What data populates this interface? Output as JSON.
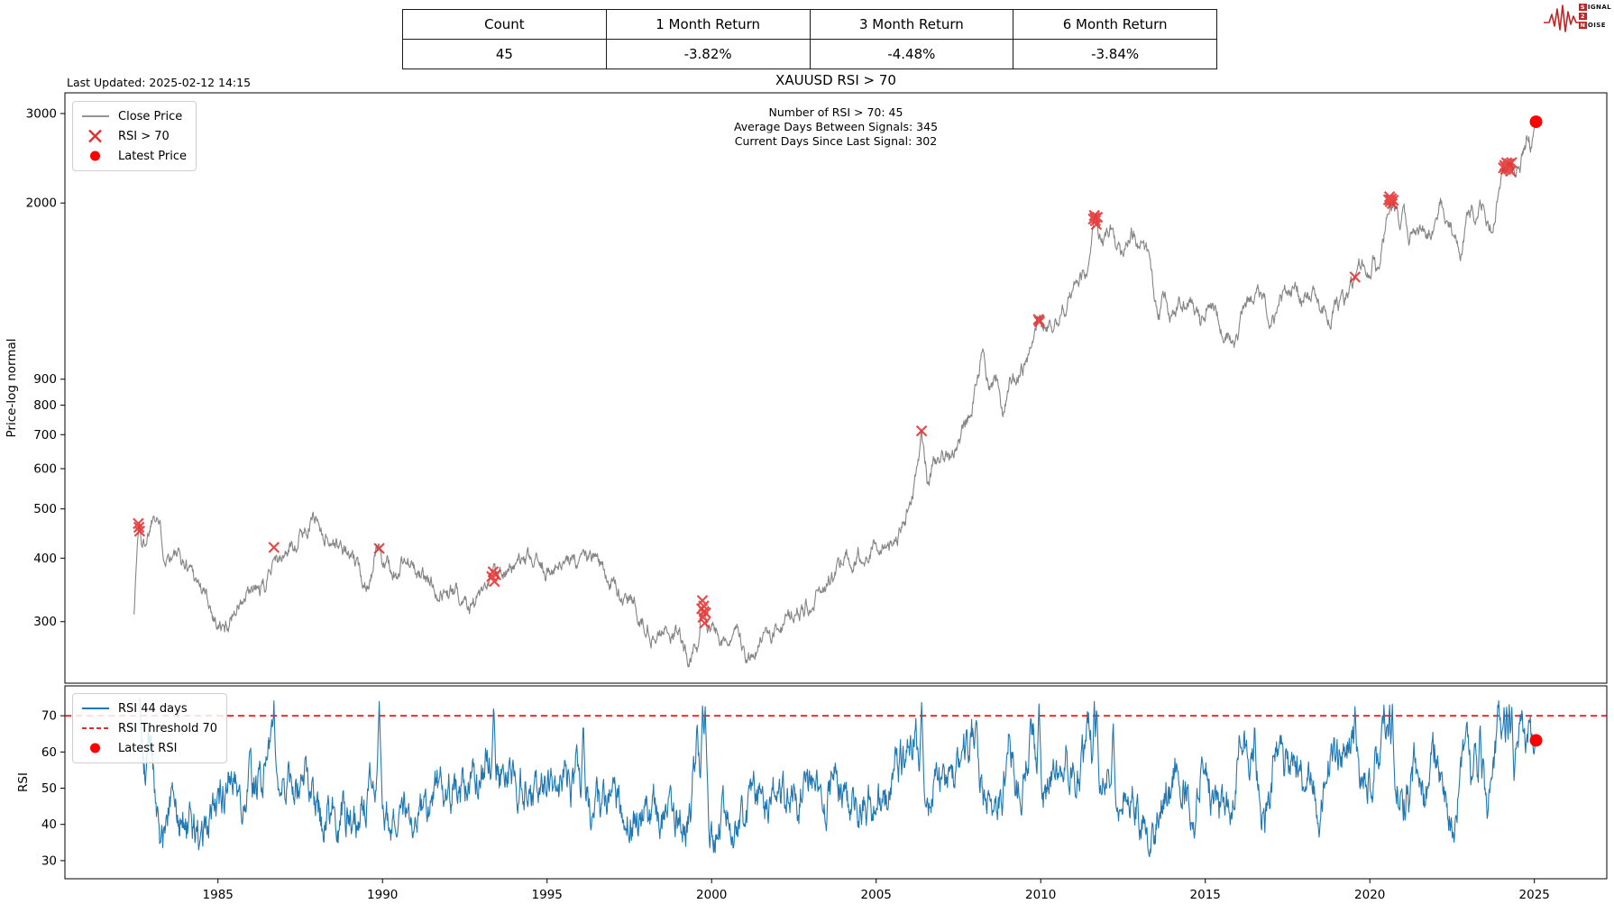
{
  "page": {
    "last_updated": "Last Updated: 2025-02-12 14:15",
    "title": "XAUUSD RSI > 70"
  },
  "summary_table": {
    "headers": [
      "Count",
      "1 Month Return",
      "3 Month Return",
      "6 Month Return"
    ],
    "values": [
      "45",
      "-3.82%",
      "-4.48%",
      "-3.84%"
    ]
  },
  "logo": {
    "rows": [
      {
        "boxed": "S",
        "rest": "IGNAL"
      },
      {
        "boxed": "2",
        "rest": ""
      },
      {
        "boxed": "N",
        "rest": "OISE"
      }
    ],
    "color": "#c52222"
  },
  "chart_data": [
    {
      "type": "line",
      "title": "XAUUSD RSI > 70",
      "ylabel": "Price-log normal",
      "yscale": "log",
      "ylim": [
        227,
        3295
      ],
      "xlim": [
        1980.35,
        2027.2
      ],
      "yticks": [
        3000,
        2000,
        900,
        800,
        700,
        600,
        500,
        400,
        300
      ],
      "grid": false,
      "annotations": [
        "Number of RSI > 70: 45",
        "Average Days Between Signals: 345",
        "Current Days Since Last Signal: 302"
      ],
      "stats": {
        "count": 45,
        "avg_days_between_signals": 345,
        "days_since_last_signal": 302
      },
      "legend": {
        "position": "upper left",
        "entries": [
          {
            "label": "Close Price",
            "marker": "line",
            "color": "#858585"
          },
          {
            "label": "RSI > 70",
            "marker": "x",
            "color": "#e63030"
          },
          {
            "label": "Latest Price",
            "marker": "dot",
            "color": "#ff0000"
          }
        ]
      },
      "series": [
        {
          "name": "Close Price",
          "color": "#858585",
          "seed": 1337,
          "keypoints": [
            [
              1982.45,
              315
            ],
            [
              1982.55,
              430
            ],
            [
              1982.62,
              470
            ],
            [
              1982.7,
              420
            ],
            [
              1982.85,
              445
            ],
            [
              1983.05,
              500
            ],
            [
              1983.15,
              510
            ],
            [
              1983.35,
              420
            ],
            [
              1983.6,
              415
            ],
            [
              1983.9,
              390
            ],
            [
              1984.2,
              385
            ],
            [
              1984.6,
              340
            ],
            [
              1985.0,
              300
            ],
            [
              1985.2,
              286
            ],
            [
              1985.55,
              325
            ],
            [
              1985.8,
              328
            ],
            [
              1986.1,
              340
            ],
            [
              1986.45,
              345
            ],
            [
              1986.7,
              420
            ],
            [
              1986.9,
              395
            ],
            [
              1987.2,
              420
            ],
            [
              1987.6,
              450
            ],
            [
              1987.95,
              490
            ],
            [
              1988.15,
              455
            ],
            [
              1988.5,
              435
            ],
            [
              1988.8,
              415
            ],
            [
              1989.1,
              390
            ],
            [
              1989.35,
              362
            ],
            [
              1989.6,
              370
            ],
            [
              1989.9,
              418
            ],
            [
              1990.1,
              390
            ],
            [
              1990.45,
              368
            ],
            [
              1990.65,
              400
            ],
            [
              1990.9,
              378
            ],
            [
              1991.3,
              360
            ],
            [
              1991.7,
              350
            ],
            [
              1992.1,
              340
            ],
            [
              1992.5,
              338
            ],
            [
              1992.9,
              332
            ],
            [
              1993.15,
              328
            ],
            [
              1993.38,
              372
            ],
            [
              1993.6,
              380
            ],
            [
              1993.85,
              390
            ],
            [
              1994.3,
              382
            ],
            [
              1994.8,
              388
            ],
            [
              1995.3,
              385
            ],
            [
              1995.8,
              388
            ],
            [
              1996.1,
              412
            ],
            [
              1996.4,
              395
            ],
            [
              1996.9,
              368
            ],
            [
              1997.4,
              330
            ],
            [
              1997.8,
              310
            ],
            [
              1998.2,
              295
            ],
            [
              1998.6,
              290
            ],
            [
              1999.0,
              285
            ],
            [
              1999.35,
              256
            ],
            [
              1999.55,
              260
            ],
            [
              1999.73,
              326
            ],
            [
              1999.9,
              298
            ],
            [
              2000.15,
              288
            ],
            [
              2000.5,
              278
            ],
            [
              2000.85,
              268
            ],
            [
              2001.15,
              258
            ],
            [
              2001.5,
              270
            ],
            [
              2001.9,
              278
            ],
            [
              2002.3,
              305
            ],
            [
              2002.8,
              320
            ],
            [
              2003.15,
              350
            ],
            [
              2003.5,
              345
            ],
            [
              2003.95,
              400
            ],
            [
              2004.3,
              405
            ],
            [
              2004.7,
              420
            ],
            [
              2005.1,
              428
            ],
            [
              2005.5,
              435
            ],
            [
              2005.9,
              500
            ],
            [
              2006.15,
              560
            ],
            [
              2006.38,
              715
            ],
            [
              2006.55,
              590
            ],
            [
              2006.8,
              625
            ],
            [
              2007.1,
              655
            ],
            [
              2007.5,
              670
            ],
            [
              2007.85,
              790
            ],
            [
              2008.2,
              990
            ],
            [
              2008.45,
              880
            ],
            [
              2008.65,
              910
            ],
            [
              2008.85,
              730
            ],
            [
              2009.1,
              900
            ],
            [
              2009.4,
              935
            ],
            [
              2009.7,
              1000
            ],
            [
              2009.95,
              1190
            ],
            [
              2010.15,
              1110
            ],
            [
              2010.4,
              1180
            ],
            [
              2010.7,
              1250
            ],
            [
              2010.95,
              1400
            ],
            [
              2011.15,
              1420
            ],
            [
              2011.4,
              1520
            ],
            [
              2011.64,
              1895
            ],
            [
              2011.72,
              1780
            ],
            [
              2011.85,
              1740
            ],
            [
              2012.05,
              1720
            ],
            [
              2012.2,
              1780
            ],
            [
              2012.45,
              1590
            ],
            [
              2012.75,
              1770
            ],
            [
              2013.05,
              1670
            ],
            [
              2013.3,
              1560
            ],
            [
              2013.4,
              1380
            ],
            [
              2013.6,
              1230
            ],
            [
              2013.75,
              1330
            ],
            [
              2013.95,
              1200
            ],
            [
              2014.2,
              1330
            ],
            [
              2014.55,
              1290
            ],
            [
              2014.85,
              1150
            ],
            [
              2015.1,
              1280
            ],
            [
              2015.4,
              1180
            ],
            [
              2015.7,
              1095
            ],
            [
              2015.95,
              1055
            ],
            [
              2016.2,
              1240
            ],
            [
              2016.55,
              1360
            ],
            [
              2016.8,
              1270
            ],
            [
              2016.95,
              1130
            ],
            [
              2017.3,
              1255
            ],
            [
              2017.7,
              1340
            ],
            [
              2018.05,
              1330
            ],
            [
              2018.35,
              1320
            ],
            [
              2018.65,
              1180
            ],
            [
              2019.0,
              1290
            ],
            [
              2019.3,
              1280
            ],
            [
              2019.55,
              1430
            ],
            [
              2019.75,
              1500
            ],
            [
              2019.95,
              1480
            ],
            [
              2020.15,
              1590
            ],
            [
              2020.22,
              1470
            ],
            [
              2020.45,
              1740
            ],
            [
              2020.62,
              2055
            ],
            [
              2020.8,
              1900
            ],
            [
              2020.95,
              1840
            ],
            [
              2021.0,
              1950
            ],
            [
              2021.2,
              1735
            ],
            [
              2021.45,
              1900
            ],
            [
              2021.7,
              1800
            ],
            [
              2021.95,
              1790
            ],
            [
              2022.15,
              2040
            ],
            [
              2022.4,
              1880
            ],
            [
              2022.6,
              1720
            ],
            [
              2022.75,
              1630
            ],
            [
              2023.0,
              1870
            ],
            [
              2023.1,
              1930
            ],
            [
              2023.25,
              1830
            ],
            [
              2023.35,
              2040
            ],
            [
              2023.55,
              1930
            ],
            [
              2023.75,
              1830
            ],
            [
              2023.95,
              2050
            ],
            [
              2024.1,
              2330
            ],
            [
              2024.22,
              2400
            ],
            [
              2024.35,
              2320
            ],
            [
              2024.5,
              2330
            ],
            [
              2024.65,
              2480
            ],
            [
              2024.82,
              2770
            ],
            [
              2024.92,
              2620
            ],
            [
              2025.05,
              2890
            ]
          ]
        }
      ],
      "signals": {
        "label": "RSI > 70",
        "marker": "x",
        "color": "#e63030",
        "points": [
          [
            1982.58,
            468
          ],
          [
            1982.6,
            460
          ],
          [
            1982.62,
            452
          ],
          [
            1986.7,
            420
          ],
          [
            1989.9,
            418
          ],
          [
            1993.32,
            368
          ],
          [
            1993.36,
            376
          ],
          [
            1993.4,
            360
          ],
          [
            1993.44,
            371
          ],
          [
            1999.7,
            318
          ],
          [
            1999.72,
            330
          ],
          [
            1999.74,
            306
          ],
          [
            1999.76,
            322
          ],
          [
            1999.77,
            314
          ],
          [
            1999.79,
            298
          ],
          [
            1999.82,
            312
          ],
          [
            2006.38,
            712
          ],
          [
            2009.93,
            1180
          ],
          [
            2009.95,
            1175
          ],
          [
            2009.96,
            1168
          ],
          [
            2011.6,
            1860
          ],
          [
            2011.63,
            1890
          ],
          [
            2011.65,
            1870
          ],
          [
            2011.66,
            1845
          ],
          [
            2011.69,
            1815
          ],
          [
            2011.72,
            1875
          ],
          [
            2019.55,
            1430
          ],
          [
            2020.57,
            2030
          ],
          [
            2020.6,
            2058
          ],
          [
            2020.62,
            2012
          ],
          [
            2020.63,
            2030
          ],
          [
            2020.65,
            2040
          ],
          [
            2020.68,
            1995
          ],
          [
            2020.71,
            2025
          ],
          [
            2024.06,
            2345
          ],
          [
            2024.1,
            2372
          ],
          [
            2024.12,
            2358
          ],
          [
            2024.13,
            2330
          ],
          [
            2024.16,
            2400
          ],
          [
            2024.19,
            2360
          ],
          [
            2024.2,
            2385
          ],
          [
            2024.22,
            2335
          ],
          [
            2024.25,
            2390
          ],
          [
            2024.28,
            2310
          ],
          [
            2024.31,
            2402
          ]
        ]
      },
      "latest": {
        "label": "Latest Price",
        "color": "#ff0000",
        "point": [
          2025.05,
          2890
        ]
      }
    },
    {
      "type": "line",
      "ylabel": "RSI",
      "ylim": [
        25,
        78.25
      ],
      "xlim": [
        1980.35,
        2027.2
      ],
      "yticks": [
        70,
        60,
        50,
        40,
        30
      ],
      "xticks": [
        1985,
        1990,
        1995,
        2000,
        2005,
        2010,
        2015,
        2020,
        2025
      ],
      "grid": false,
      "threshold": {
        "label": "RSI Threshold 70",
        "value": 70,
        "color": "#ff0000",
        "style": "dashed"
      },
      "legend": {
        "position": "upper left",
        "entries": [
          {
            "label": "RSI 44 days",
            "marker": "line",
            "color": "#1f77b4"
          },
          {
            "label": "RSI Threshold 70",
            "marker": "dashed",
            "color": "#ff0000"
          },
          {
            "label": "Latest RSI",
            "marker": "dot",
            "color": "#ff0000"
          }
        ]
      },
      "series": [
        {
          "name": "RSI 44 days",
          "color": "#1f77b4",
          "period_days": 44,
          "seed": 24,
          "start_year": 1982.62,
          "signal_years": [
            1982.6,
            1986.7,
            1989.9,
            1993.38,
            1999.73,
            1999.8,
            2006.38,
            2009.95,
            2011.63,
            2011.7,
            2019.55,
            2020.6,
            2020.68,
            2024.08,
            2024.16,
            2024.24,
            2024.31
          ],
          "near_miss_years": [
            1996.1,
            2007.9,
            2012.2,
            2016.5,
            2023.35
          ]
        }
      ],
      "latest": {
        "label": "Latest RSI",
        "color": "#ff0000",
        "point": [
          2025.05,
          63.2
        ]
      }
    }
  ]
}
